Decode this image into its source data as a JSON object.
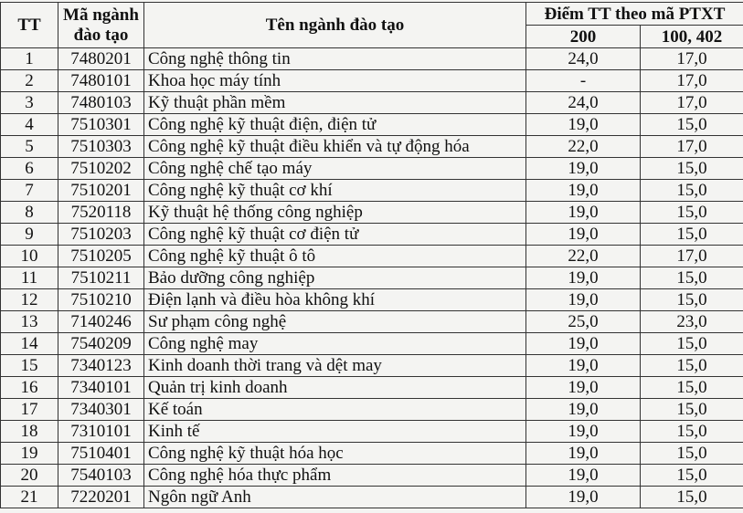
{
  "header": {
    "tt": "TT",
    "code": "Mã ngành đào tạo",
    "name": "Tên ngành đào tạo",
    "score_group": "Điểm TT theo mã PTXT",
    "col_200": "200",
    "col_100_402": "100, 402"
  },
  "rows": [
    [
      "1",
      "7480201",
      "Công nghệ thông tin",
      "24,0",
      "17,0"
    ],
    [
      "2",
      "7480101",
      "Khoa học máy tính",
      "-",
      "17,0"
    ],
    [
      "3",
      "7480103",
      "Kỹ thuật phần mềm",
      "24,0",
      "17,0"
    ],
    [
      "4",
      "7510301",
      "Công nghệ kỹ thuật điện, điện tử",
      "19,0",
      "15,0"
    ],
    [
      "5",
      "7510303",
      "Công nghệ kỹ thuật điều khiển và tự động hóa",
      "22,0",
      "17,0"
    ],
    [
      "6",
      "7510202",
      "Công nghệ chế tạo máy",
      "19,0",
      "15,0"
    ],
    [
      "7",
      "7510201",
      "Công nghệ kỹ thuật cơ khí",
      "19,0",
      "15,0"
    ],
    [
      "8",
      "7520118",
      "Kỹ thuật hệ thống công nghiệp",
      "19,0",
      "15,0"
    ],
    [
      "9",
      "7510203",
      "Công nghệ kỹ thuật cơ điện tử",
      "19,0",
      "15,0"
    ],
    [
      "10",
      "7510205",
      "Công nghệ kỹ thuật ô tô",
      "22,0",
      "17,0"
    ],
    [
      "11",
      "7510211",
      "Bảo dưỡng công nghiệp",
      "19,0",
      "15,0"
    ],
    [
      "12",
      "7510210",
      "Điện lạnh và điều hòa không khí",
      "19,0",
      "15,0"
    ],
    [
      "13",
      "7140246",
      "Sư phạm công nghệ",
      "25,0",
      "23,0"
    ],
    [
      "14",
      "7540209",
      "Công nghệ may",
      "19,0",
      "15,0"
    ],
    [
      "15",
      "7340123",
      "Kinh doanh thời trang và dệt may",
      "19,0",
      "15,0"
    ],
    [
      "16",
      "7340101",
      "Quản trị kinh doanh",
      "19,0",
      "15,0"
    ],
    [
      "17",
      "7340301",
      "Kế toán",
      "19,0",
      "15,0"
    ],
    [
      "18",
      "7310101",
      "Kinh tế",
      "19,0",
      "15,0"
    ],
    [
      "19",
      "7510401",
      "Công nghệ kỹ thuật hóa học",
      "19,0",
      "15,0"
    ],
    [
      "20",
      "7540103",
      "Công nghệ hóa thực phẩm",
      "19,0",
      "15,0"
    ],
    [
      "21",
      "7220201",
      "Ngôn ngữ Anh",
      "19,0",
      "15,0"
    ]
  ]
}
